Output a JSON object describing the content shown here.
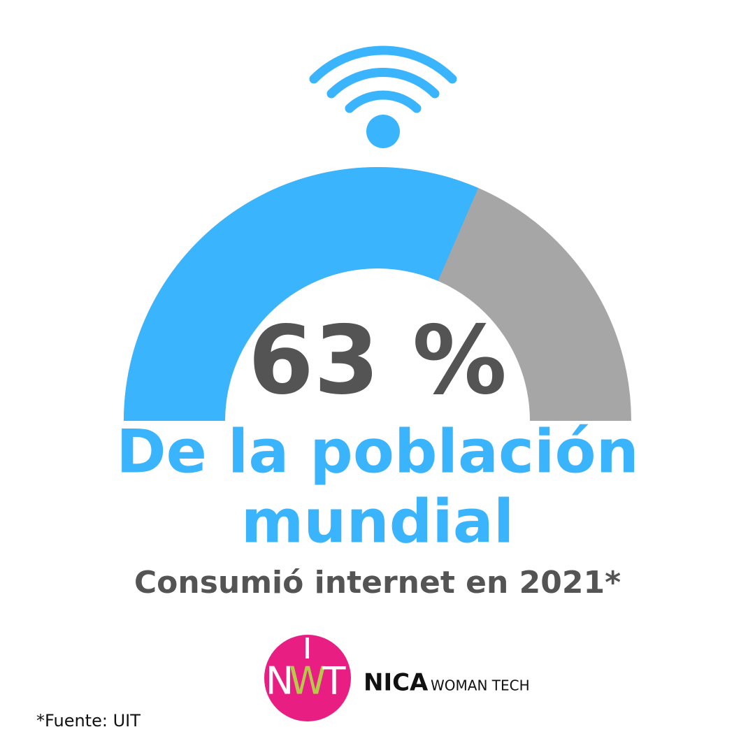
{
  "chart_data": {
    "type": "gauge",
    "values": [
      63
    ],
    "value_labels": [
      "63 %"
    ],
    "ylim": [
      0,
      100
    ],
    "color": "#3bb4fe",
    "track_color": "#a6a6a6",
    "title_lines": [
      "De la población",
      "mundial"
    ],
    "subtitle": "Consumió internet en 2021*",
    "source": "*Fuente: UIT"
  },
  "logo": {
    "mark": [
      "N",
      "W",
      "T"
    ],
    "name_bold": "NICA",
    "name_rest": "WOMAN TECH"
  }
}
